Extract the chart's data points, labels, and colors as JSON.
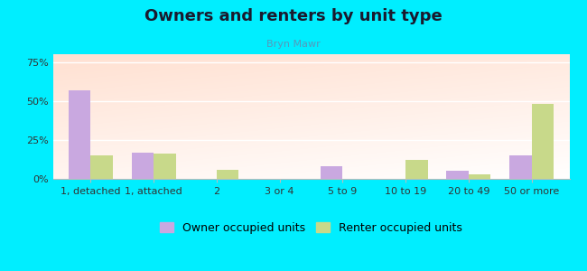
{
  "title": "Owners and renters by unit type",
  "subtitle": "Bryn Mawr",
  "categories": [
    "1, detached",
    "1, attached",
    "2",
    "3 or 4",
    "5 to 9",
    "10 to 19",
    "20 to 49",
    "50 or more"
  ],
  "owner_values": [
    57,
    17,
    0,
    0,
    8,
    0,
    5,
    15
  ],
  "renter_values": [
    15,
    16,
    6,
    0,
    0,
    12,
    3,
    48
  ],
  "owner_color": "#c9a8e0",
  "renter_color": "#c8d98a",
  "background_outer": "#00eeff",
  "yticks": [
    0,
    25,
    50,
    75
  ],
  "ylim": [
    0,
    80
  ],
  "bar_width": 0.35,
  "title_fontsize": 13,
  "subtitle_fontsize": 8,
  "legend_fontsize": 9,
  "tick_fontsize": 8,
  "subtitle_color": "#5599bb",
  "title_color": "#1a1a2e"
}
